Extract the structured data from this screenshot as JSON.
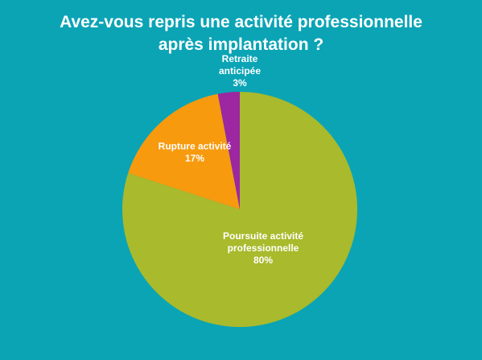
{
  "chart_data": {
    "type": "pie",
    "title_lines": [
      "Avez-vous repris une activité professionnelle",
      "après implantation ?"
    ],
    "slices": [
      {
        "label_lines": [
          "Poursuite activité",
          "professionnelle"
        ],
        "value": 80,
        "display": "80%",
        "color": "#a9ba2c"
      },
      {
        "label_lines": [
          "Rupture activité"
        ],
        "value": 17,
        "display": "17%",
        "color": "#f79a0e"
      },
      {
        "label_lines": [
          "Retraite",
          "anticipée"
        ],
        "value": 3,
        "display": "3%",
        "color": "#9c27a0"
      }
    ],
    "start": "12 o'clock",
    "direction": "clockwise"
  },
  "colors": {
    "background": "#0aa4b5",
    "text": "#ffffff"
  }
}
